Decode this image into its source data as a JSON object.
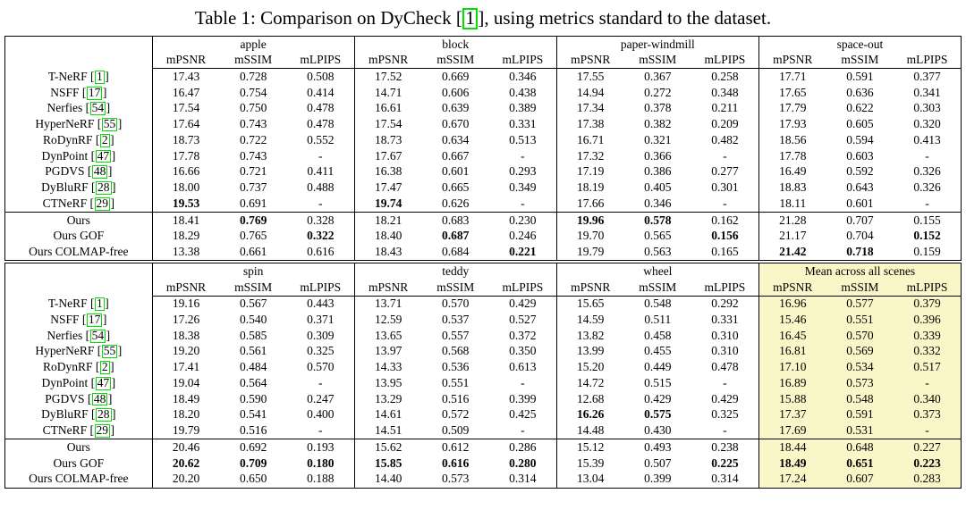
{
  "caption": {
    "prefix": "Table 1: Comparison on DyCheck [",
    "citation": "1",
    "suffix": "], using metrics standard to the dataset."
  },
  "colors": {
    "highlight": "#FBF6C8",
    "citation_box_green": "#00DF00"
  },
  "metrics": [
    "mPSNR",
    "mSSIM",
    "mLPIPS"
  ],
  "tables": [
    {
      "id": "top",
      "groups": [
        "apple",
        "block",
        "paper-windmill",
        "space-out"
      ],
      "highlight_last_group": false,
      "baseline_rows": [
        {
          "method": "T-NeRF",
          "cite": "1",
          "values": [
            "17.43",
            "0.728",
            "0.508",
            "17.52",
            "0.669",
            "0.346",
            "17.55",
            "0.367",
            "0.258",
            "17.71",
            "0.591",
            "0.377"
          ]
        },
        {
          "method": "NSFF",
          "cite": "17",
          "values": [
            "16.47",
            "0.754",
            "0.414",
            "14.71",
            "0.606",
            "0.438",
            "14.94",
            "0.272",
            "0.348",
            "17.65",
            "0.636",
            "0.341"
          ]
        },
        {
          "method": "Nerfies",
          "cite": "54",
          "values": [
            "17.54",
            "0.750",
            "0.478",
            "16.61",
            "0.639",
            "0.389",
            "17.34",
            "0.378",
            "0.211",
            "17.79",
            "0.622",
            "0.303"
          ]
        },
        {
          "method": "HyperNeRF",
          "cite": "55",
          "values": [
            "17.64",
            "0.743",
            "0.478",
            "17.54",
            "0.670",
            "0.331",
            "17.38",
            "0.382",
            "0.209",
            "17.93",
            "0.605",
            "0.320"
          ]
        },
        {
          "method": "RoDynRF",
          "cite": "2",
          "values": [
            "18.73",
            "0.722",
            "0.552",
            "18.73",
            "0.634",
            "0.513",
            "16.71",
            "0.321",
            "0.482",
            "18.56",
            "0.594",
            "0.413"
          ]
        },
        {
          "method": "DynPoint",
          "cite": "47",
          "values": [
            "17.78",
            "0.743",
            "-",
            "17.67",
            "0.667",
            "-",
            "17.32",
            "0.366",
            "-",
            "17.78",
            "0.603",
            "-"
          ]
        },
        {
          "method": "PGDVS",
          "cite": "48",
          "values": [
            "16.66",
            "0.721",
            "0.411",
            "16.38",
            "0.601",
            "0.293",
            "17.19",
            "0.386",
            "0.277",
            "16.49",
            "0.592",
            "0.326"
          ]
        },
        {
          "method": "DyBluRF",
          "cite": "28",
          "values": [
            "18.00",
            "0.737",
            "0.488",
            "17.47",
            "0.665",
            "0.349",
            "18.19",
            "0.405",
            "0.301",
            "18.83",
            "0.643",
            "0.326"
          ]
        },
        {
          "method": "CTNeRF",
          "cite": "29",
          "values": [
            "*19.53",
            "0.691",
            "-",
            "*19.74",
            "0.626",
            "-",
            "17.66",
            "0.346",
            "-",
            "18.11",
            "0.601",
            "-"
          ]
        }
      ],
      "ours_rows": [
        {
          "method": "Ours",
          "cite": null,
          "values": [
            "18.41",
            "*0.769",
            "0.328",
            "18.21",
            "0.683",
            "0.230",
            "*19.96",
            "*0.578",
            "0.162",
            "21.28",
            "0.707",
            "0.155"
          ]
        },
        {
          "method": "Ours GOF",
          "cite": null,
          "values": [
            "18.29",
            "0.765",
            "*0.322",
            "18.40",
            "*0.687",
            "0.246",
            "19.70",
            "0.565",
            "*0.156",
            "21.17",
            "0.704",
            "*0.152"
          ]
        },
        {
          "method": "Ours COLMAP-free",
          "cite": null,
          "values": [
            "13.38",
            "0.661",
            "0.616",
            "18.43",
            "0.684",
            "*0.221",
            "19.79",
            "0.563",
            "0.165",
            "*21.42",
            "*0.718",
            "0.159"
          ]
        }
      ]
    },
    {
      "id": "bottom",
      "groups": [
        "spin",
        "teddy",
        "wheel",
        "Mean across all scenes"
      ],
      "highlight_last_group": true,
      "baseline_rows": [
        {
          "method": "T-NeRF",
          "cite": "1",
          "values": [
            "19.16",
            "0.567",
            "0.443",
            "13.71",
            "0.570",
            "0.429",
            "15.65",
            "0.548",
            "0.292",
            "16.96",
            "0.577",
            "0.379"
          ]
        },
        {
          "method": "NSFF",
          "cite": "17",
          "values": [
            "17.26",
            "0.540",
            "0.371",
            "12.59",
            "0.537",
            "0.527",
            "14.59",
            "0.511",
            "0.331",
            "15.46",
            "0.551",
            "0.396"
          ]
        },
        {
          "method": "Nerfies",
          "cite": "54",
          "values": [
            "18.38",
            "0.585",
            "0.309",
            "13.65",
            "0.557",
            "0.372",
            "13.82",
            "0.458",
            "0.310",
            "16.45",
            "0.570",
            "0.339"
          ]
        },
        {
          "method": "HyperNeRF",
          "cite": "55",
          "values": [
            "19.20",
            "0.561",
            "0.325",
            "13.97",
            "0.568",
            "0.350",
            "13.99",
            "0.455",
            "0.310",
            "16.81",
            "0.569",
            "0.332"
          ]
        },
        {
          "method": "RoDynRF",
          "cite": "2",
          "values": [
            "17.41",
            "0.484",
            "0.570",
            "14.33",
            "0.536",
            "0.613",
            "15.20",
            "0.449",
            "0.478",
            "17.10",
            "0.534",
            "0.517"
          ]
        },
        {
          "method": "DynPoint",
          "cite": "47",
          "values": [
            "19.04",
            "0.564",
            "-",
            "13.95",
            "0.551",
            "-",
            "14.72",
            "0.515",
            "-",
            "16.89",
            "0.573",
            "-"
          ]
        },
        {
          "method": "PGDVS",
          "cite": "48",
          "values": [
            "18.49",
            "0.590",
            "0.247",
            "13.29",
            "0.516",
            "0.399",
            "12.68",
            "0.429",
            "0.429",
            "15.88",
            "0.548",
            "0.340"
          ]
        },
        {
          "method": "DyBluRF",
          "cite": "28",
          "values": [
            "18.20",
            "0.541",
            "0.400",
            "14.61",
            "0.572",
            "0.425",
            "*16.26",
            "*0.575",
            "0.325",
            "17.37",
            "0.591",
            "0.373"
          ]
        },
        {
          "method": "CTNeRF",
          "cite": "29",
          "values": [
            "19.79",
            "0.516",
            "-",
            "14.51",
            "0.509",
            "-",
            "14.48",
            "0.430",
            "-",
            "17.69",
            "0.531",
            "-"
          ]
        }
      ],
      "ours_rows": [
        {
          "method": "Ours",
          "cite": null,
          "values": [
            "20.46",
            "0.692",
            "0.193",
            "15.62",
            "0.612",
            "0.286",
            "15.12",
            "0.493",
            "0.238",
            "18.44",
            "0.648",
            "0.227"
          ]
        },
        {
          "method": "Ours GOF",
          "cite": null,
          "values": [
            "*20.62",
            "*0.709",
            "*0.180",
            "*15.85",
            "*0.616",
            "*0.280",
            "15.39",
            "0.507",
            "*0.225",
            "*18.49",
            "*0.651",
            "*0.223"
          ]
        },
        {
          "method": "Ours COLMAP-free",
          "cite": null,
          "values": [
            "20.20",
            "0.650",
            "0.188",
            "14.40",
            "0.573",
            "0.314",
            "13.04",
            "0.399",
            "0.314",
            "17.24",
            "0.607",
            "0.283"
          ]
        }
      ]
    }
  ]
}
